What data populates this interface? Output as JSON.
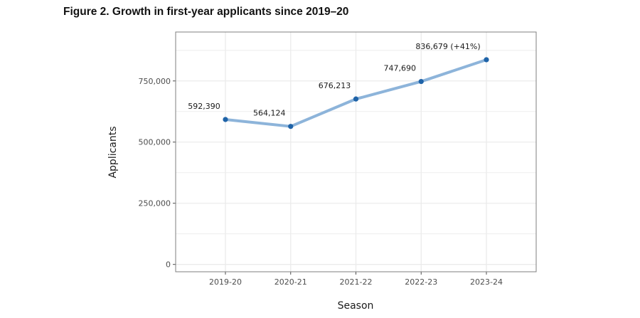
{
  "title": "Figure 2. Growth in first-year applicants since 2019–20",
  "chart_data": {
    "type": "line",
    "categories": [
      "2019-20",
      "2020-21",
      "2021-22",
      "2022-23",
      "2023-24"
    ],
    "values": [
      592390,
      564124,
      676213,
      747690,
      836679
    ],
    "data_labels": [
      "592,390",
      "564,124",
      "676,213",
      "747,690",
      "836,679 (+41%)"
    ],
    "xlabel": "Season",
    "ylabel": "Applicants",
    "ylim": [
      -30000,
      950000
    ],
    "yticks": [
      0,
      250000,
      500000,
      750000
    ],
    "ytick_labels": [
      "0",
      "250,000",
      "500,000",
      "750,000"
    ],
    "grid": true,
    "line_color": "#8db4da",
    "point_color": "#1f63a8",
    "grid_color": "#ebebeb",
    "border_color": "#7f7f7f"
  }
}
